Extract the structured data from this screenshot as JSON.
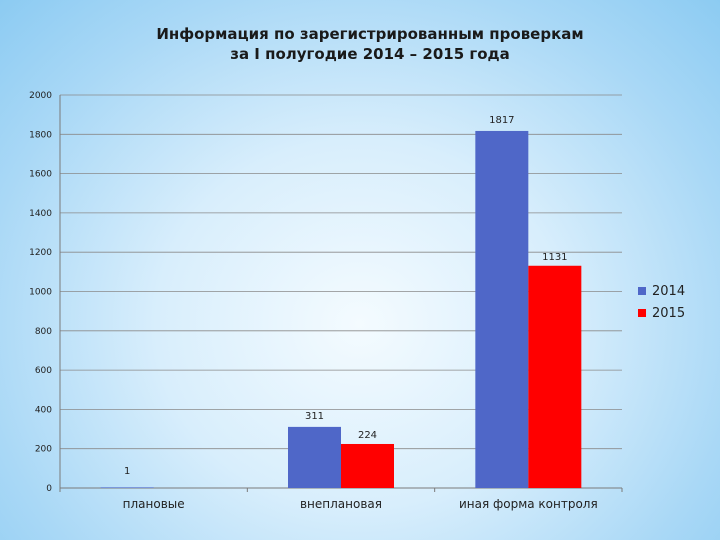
{
  "title": {
    "line1": "Информация по зарегистрированным проверкам",
    "line2": "за I полугодие 2014 – 2015 года"
  },
  "chart_data": {
    "type": "bar",
    "categories": [
      "плановые",
      "внеплановая",
      "иная форма контроля"
    ],
    "series": [
      {
        "name": "2014",
        "values": [
          1,
          311,
          1817
        ],
        "color": "#4f67c8"
      },
      {
        "name": "2015",
        "values": [
          null,
          224,
          1131
        ],
        "color": "#ff0000"
      }
    ],
    "data_labels": [
      {
        "series": "2014",
        "category": "плановые",
        "text": "1"
      },
      {
        "series": "2014",
        "category": "внеплановая",
        "text": "311"
      },
      {
        "series": "2015",
        "category": "внеплановая",
        "text": "224"
      },
      {
        "series": "2014",
        "category": "иная форма контроля",
        "text": "1817"
      },
      {
        "series": "2015",
        "category": "иная форма контроля",
        "text": "1131"
      }
    ],
    "ylim": [
      0,
      2000
    ],
    "yticks": [
      0,
      200,
      400,
      600,
      800,
      1000,
      1200,
      1400,
      1600,
      1800,
      2000
    ],
    "grid": true,
    "legend_position": "right"
  }
}
